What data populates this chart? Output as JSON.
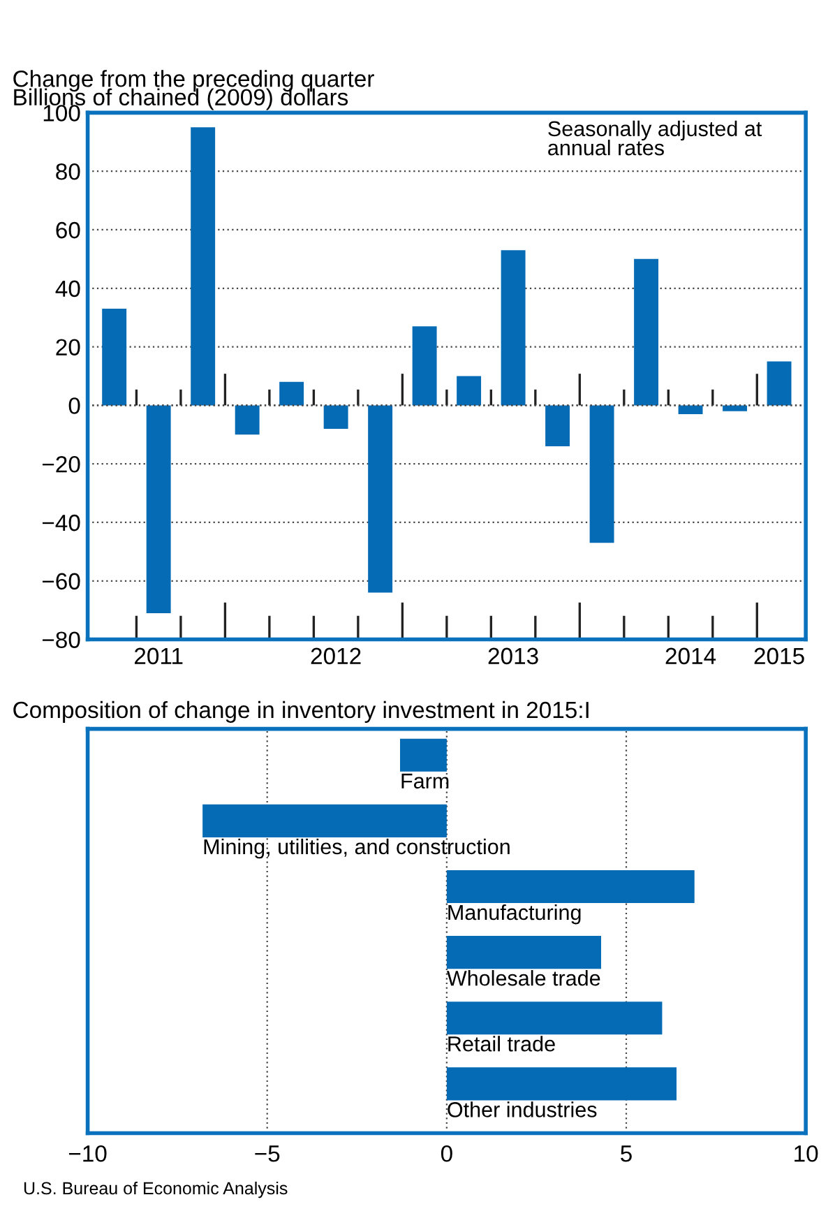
{
  "chart_data": [
    {
      "type": "bar",
      "title": "Change from the preceding quarter",
      "ylabel": "Billions of chained (2009) dollars",
      "categories": [
        null,
        "2011",
        null,
        null,
        null,
        "2012",
        null,
        null,
        null,
        "2013",
        null,
        null,
        null,
        "2014",
        null,
        "2015"
      ],
      "values": [
        33,
        -71,
        95,
        -10,
        8,
        -8,
        -64,
        27,
        10,
        53,
        -14,
        -47,
        50,
        -3,
        -2,
        15
      ],
      "color": "#066bb5",
      "ylim": [
        -80,
        100
      ],
      "yticks": [
        {
          "value": -80,
          "label": "−80"
        },
        {
          "value": -60,
          "label": "−60"
        },
        {
          "value": -40,
          "label": "−40"
        },
        {
          "value": -20,
          "label": "−20"
        },
        0,
        20,
        40,
        60,
        80,
        100
      ],
      "grid": "y",
      "annotations": [
        "Seasonally adjusted at\nannual rates"
      ]
    },
    {
      "type": "bar",
      "orientation": "horizontal",
      "title": "Composition of change in inventory investment in 2015:I",
      "categories": [
        "Farm",
        "Mining, utilities, and construction",
        "Manufacturing",
        "Wholesale trade",
        "Retail trade",
        "Other industries"
      ],
      "values": [
        -1.3,
        -6.8,
        6.9,
        4.3,
        6.0,
        6.4
      ],
      "color": "#066bb5",
      "xlim": [
        -10,
        10
      ],
      "xticks": [
        {
          "value": -10,
          "label": "−10"
        },
        {
          "value": -5,
          "label": "−5"
        },
        0,
        5,
        10
      ],
      "grid": "x",
      "annotations": [
        "U.S. Bureau of Economic Analysis"
      ]
    }
  ]
}
